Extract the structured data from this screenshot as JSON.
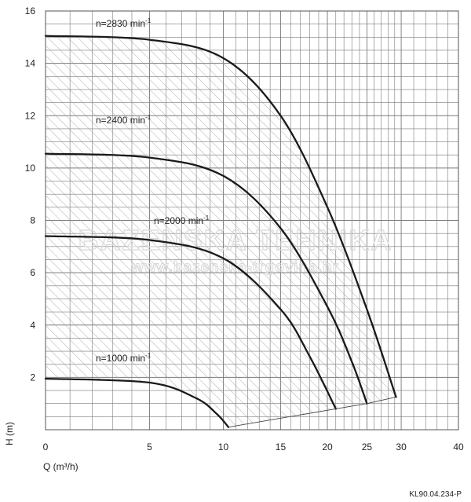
{
  "chart_data": {
    "type": "line",
    "title": "",
    "xlabel": "Q (m³/h)",
    "ylabel": "H (m)",
    "x_scale": "log",
    "xlim": [
      0,
      40
    ],
    "ylim": [
      0,
      16
    ],
    "x_ticks": [
      "0",
      "5",
      "10",
      "15",
      "20",
      "25",
      "30",
      "40"
    ],
    "y_ticks": [
      "2",
      "4",
      "6",
      "8",
      "10",
      "12",
      "14",
      "16"
    ],
    "grid": true,
    "series": [
      {
        "name": "n=2830 min-1",
        "label_base": "n=2830 min",
        "label_exp": "-1",
        "color": "#1a1a1a",
        "points": [
          [
            0,
            15.05
          ],
          [
            5,
            14.9
          ],
          [
            10,
            14.2
          ],
          [
            15,
            12.0
          ],
          [
            20,
            8.5
          ],
          [
            25,
            4.6
          ],
          [
            29.2,
            1.25
          ]
        ]
      },
      {
        "name": "n=2400 min-1",
        "label_base": "n=2400 min",
        "label_exp": "-1",
        "color": "#1a1a1a",
        "points": [
          [
            0,
            10.55
          ],
          [
            5,
            10.4
          ],
          [
            10,
            9.7
          ],
          [
            15,
            7.7
          ],
          [
            20,
            4.7
          ],
          [
            23,
            2.6
          ],
          [
            25,
            1.0
          ]
        ]
      },
      {
        "name": "n=2000 min-1",
        "label_base": "n=2000 min",
        "label_exp": "-1",
        "color": "#1a1a1a",
        "points": [
          [
            0,
            7.4
          ],
          [
            5,
            7.25
          ],
          [
            10,
            6.55
          ],
          [
            15,
            4.6
          ],
          [
            18,
            2.8
          ],
          [
            21,
            0.8
          ]
        ]
      },
      {
        "name": "n=1000 min-1",
        "label_base": "n=1000 min",
        "label_exp": "-1",
        "color": "#1a1a1a",
        "points": [
          [
            0,
            1.95
          ],
          [
            5,
            1.8
          ],
          [
            8,
            1.2
          ],
          [
            9.5,
            0.6
          ],
          [
            10.4,
            0.1
          ]
        ]
      }
    ],
    "operating_range": {
      "fill": "hatched",
      "lower_boundary": [
        [
          10.4,
          0.1
        ],
        [
          21,
          0.8
        ],
        [
          25,
          1.0
        ],
        [
          29.2,
          1.25
        ]
      ]
    },
    "watermark": {
      "line1": "BAZENSKA TEHNIKA",
      "line2": "www.bazenska-trgovina.hr"
    },
    "footer_code": "KL90.04.234-P"
  }
}
